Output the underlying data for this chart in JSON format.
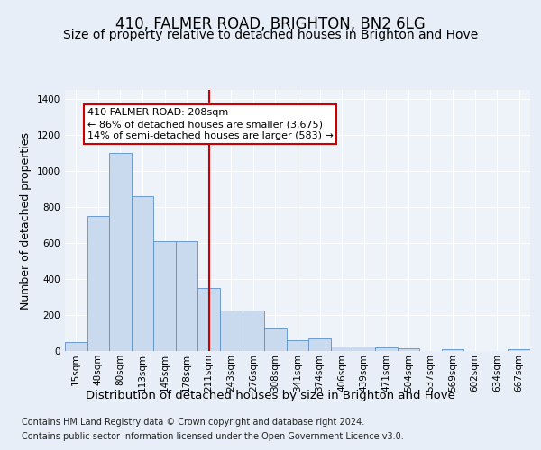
{
  "title": "410, FALMER ROAD, BRIGHTON, BN2 6LG",
  "subtitle": "Size of property relative to detached houses in Brighton and Hove",
  "xlabel": "Distribution of detached houses by size in Brighton and Hove",
  "ylabel": "Number of detached properties",
  "categories": [
    "15sqm",
    "48sqm",
    "80sqm",
    "113sqm",
    "145sqm",
    "178sqm",
    "211sqm",
    "243sqm",
    "276sqm",
    "308sqm",
    "341sqm",
    "374sqm",
    "406sqm",
    "439sqm",
    "471sqm",
    "504sqm",
    "537sqm",
    "569sqm",
    "602sqm",
    "634sqm",
    "667sqm"
  ],
  "values": [
    50,
    750,
    1100,
    860,
    610,
    610,
    350,
    225,
    225,
    130,
    60,
    70,
    25,
    25,
    20,
    15,
    0,
    10,
    0,
    0,
    10
  ],
  "bar_color": "#c9d9ee",
  "bar_edge_color": "#5b8fc9",
  "vline_index": 6,
  "vline_color": "#cc0000",
  "annotation_title": "410 FALMER ROAD: 208sqm",
  "annotation_line1": "← 86% of detached houses are smaller (3,675)",
  "annotation_line2": "14% of semi-detached houses are larger (583) →",
  "annotation_box_color": "#cc0000",
  "annotation_box_fill": "#ffffff",
  "footnote1": "Contains HM Land Registry data © Crown copyright and database right 2024.",
  "footnote2": "Contains public sector information licensed under the Open Government Licence v3.0.",
  "ylim": [
    0,
    1450
  ],
  "bg_color": "#e8eef7",
  "plot_bg_color": "#eef2f9",
  "grid_color": "#ffffff",
  "title_fontsize": 12,
  "subtitle_fontsize": 10,
  "xlabel_fontsize": 9.5,
  "ylabel_fontsize": 9,
  "tick_fontsize": 7.5,
  "annotation_fontsize": 8,
  "footnote_fontsize": 7
}
